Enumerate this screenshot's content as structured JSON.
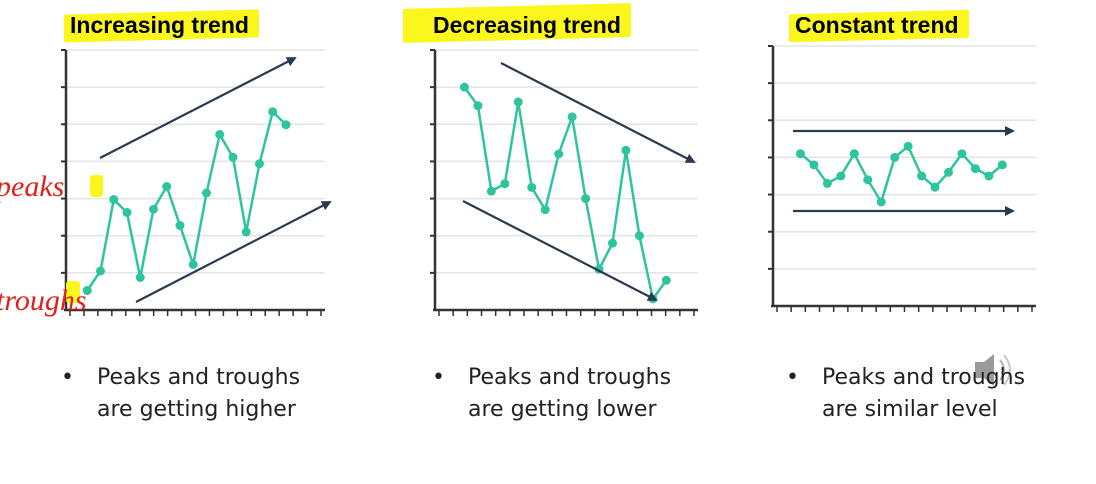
{
  "chart_data": [
    {
      "type": "line",
      "title": "Increasing trend",
      "xlabel": "",
      "ylabel": "",
      "x": [
        1,
        2,
        3,
        4,
        5,
        6,
        7,
        8,
        9,
        10,
        11,
        12,
        13,
        14,
        15,
        16,
        17
      ],
      "values": [
        0.6,
        1.2,
        3.4,
        3.0,
        1.0,
        3.1,
        3.8,
        2.6,
        1.4,
        3.6,
        5.4,
        4.7,
        2.4,
        4.5,
        6.1,
        5.7,
        null
      ],
      "ylim": [
        0,
        8
      ],
      "grid": true,
      "note": "Peaks and troughs are getting higher"
    },
    {
      "type": "line",
      "title": "Decreasing trend",
      "xlabel": "",
      "ylabel": "",
      "x": [
        1,
        2,
        3,
        4,
        5,
        6,
        7,
        8,
        9,
        10,
        11,
        12,
        13,
        14,
        15,
        16,
        17
      ],
      "values": [
        6.0,
        5.5,
        3.2,
        3.4,
        5.6,
        3.3,
        2.7,
        4.2,
        5.2,
        3.0,
        1.1,
        1.8,
        4.3,
        2.0,
        0.3,
        0.8,
        null
      ],
      "ylim": [
        0,
        7
      ],
      "grid": true,
      "note": "Peaks and troughs are getting lower"
    },
    {
      "type": "line",
      "title": "Constant trend",
      "xlabel": "",
      "ylabel": "",
      "x": [
        1,
        2,
        3,
        4,
        5,
        6,
        7,
        8,
        9,
        10,
        11,
        12,
        13,
        14,
        15,
        16,
        17
      ],
      "values": [
        4.1,
        3.8,
        3.3,
        3.5,
        4.1,
        3.4,
        2.8,
        4.0,
        4.3,
        3.5,
        3.2,
        3.6,
        4.1,
        3.7,
        3.5,
        3.8,
        null
      ],
      "ylim": [
        0,
        7
      ],
      "grid": true,
      "note": "Peaks and troughs are similar level"
    }
  ],
  "titles": [
    "Increasing trend",
    "Decreasing trend",
    "Constant trend"
  ],
  "bullets": [
    {
      "line1": "Peaks and troughs",
      "line2": "are getting higher"
    },
    {
      "line1": "Peaks and troughs",
      "line2": "are getting lower"
    },
    {
      "line1": "Peaks and troughs",
      "line2": "are similar level"
    }
  ],
  "bullet_symbol": "•",
  "annotations": {
    "peaks": "peaks",
    "troughs": "troughs"
  },
  "colors": {
    "line": "#2ec4a0",
    "axis": "#333333",
    "grid": "#e3e3e3",
    "arrow": "#2b3a4f",
    "highlight": "#fbf71c",
    "ink": "#e0201b"
  },
  "icons": {
    "speaker": "speaker-icon"
  }
}
